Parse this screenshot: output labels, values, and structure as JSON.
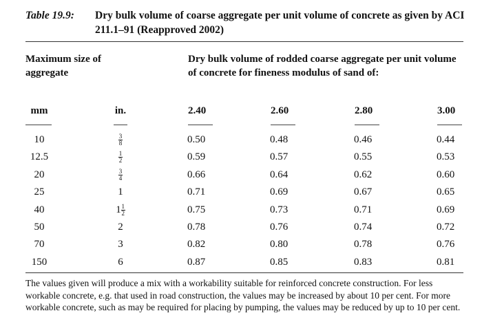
{
  "caption": {
    "label": "Table 19.9:",
    "title": "Dry bulk volume of coarse aggregate per unit volume of concrete as given by ACI 211.1–91 (Reapproved 2002)"
  },
  "header": {
    "left_title": "Maximum size of aggregate",
    "right_title": "Dry bulk volume of rodded coarse aggregate per unit volume of concrete for fineness modulus of sand of:",
    "col_mm": "mm",
    "col_in": "in.",
    "fineness_moduli": [
      "2.40",
      "2.60",
      "2.80",
      "3.00"
    ]
  },
  "rows": [
    {
      "mm": "10",
      "in": {
        "whole": "",
        "num": "3",
        "den": "8"
      },
      "values": [
        "0.50",
        "0.48",
        "0.46",
        "0.44"
      ]
    },
    {
      "mm": "12.5",
      "in": {
        "whole": "",
        "num": "1",
        "den": "2"
      },
      "values": [
        "0.59",
        "0.57",
        "0.55",
        "0.53"
      ]
    },
    {
      "mm": "20",
      "in": {
        "whole": "",
        "num": "3",
        "den": "4"
      },
      "values": [
        "0.66",
        "0.64",
        "0.62",
        "0.60"
      ]
    },
    {
      "mm": "25",
      "in": {
        "whole": "1",
        "num": "",
        "den": ""
      },
      "values": [
        "0.71",
        "0.69",
        "0.67",
        "0.65"
      ]
    },
    {
      "mm": "40",
      "in": {
        "whole": "1",
        "num": "1",
        "den": "2"
      },
      "values": [
        "0.75",
        "0.73",
        "0.71",
        "0.69"
      ]
    },
    {
      "mm": "50",
      "in": {
        "whole": "2",
        "num": "",
        "den": ""
      },
      "values": [
        "0.78",
        "0.76",
        "0.74",
        "0.72"
      ]
    },
    {
      "mm": "70",
      "in": {
        "whole": "3",
        "num": "",
        "den": ""
      },
      "values": [
        "0.82",
        "0.80",
        "0.78",
        "0.76"
      ]
    },
    {
      "mm": "150",
      "in": {
        "whole": "6",
        "num": "",
        "den": ""
      },
      "values": [
        "0.87",
        "0.85",
        "0.83",
        "0.81"
      ]
    }
  ],
  "note": "The values given will produce a mix with a workability suitable for reinforced concrete construction. For less workable concrete, e.g. that used in road construction, the values may be increased by about 10 per cent. For more workable concrete, such as may be required for placing by pumping, the values may be reduced by up to 10 per cent."
}
